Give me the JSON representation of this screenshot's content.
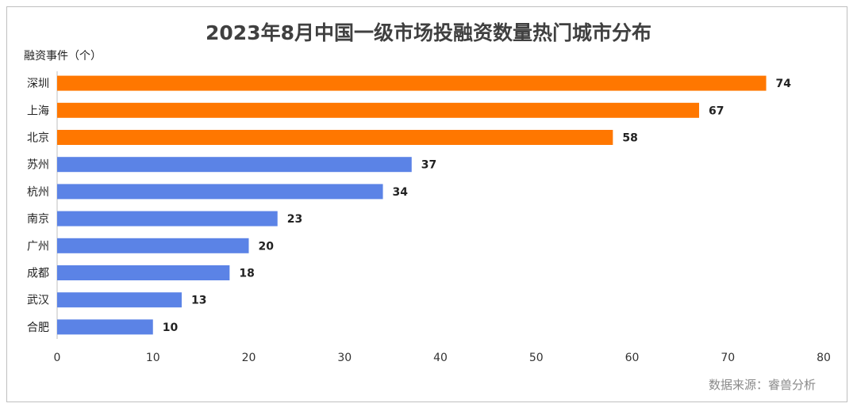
{
  "chart_data": {
    "type": "bar",
    "orientation": "horizontal",
    "title": "2023年8月中国一级市场投融资数量热门城市分布",
    "ylabel": "融资事件（个）",
    "source": "数据来源：睿兽分析",
    "categories": [
      "深圳",
      "上海",
      "北京",
      "苏州",
      "杭州",
      "南京",
      "广州",
      "成都",
      "武汉",
      "合肥"
    ],
    "values": [
      74,
      67,
      58,
      37,
      34,
      23,
      20,
      18,
      13,
      10
    ],
    "xlim": [
      0,
      80
    ],
    "xticks": [
      0,
      10,
      20,
      30,
      40,
      50,
      60,
      70,
      80
    ],
    "highlight_count": 3,
    "colors": {
      "highlight": "#FF7700",
      "normal": "#5B83E6"
    },
    "grid": false,
    "legend": "none"
  }
}
